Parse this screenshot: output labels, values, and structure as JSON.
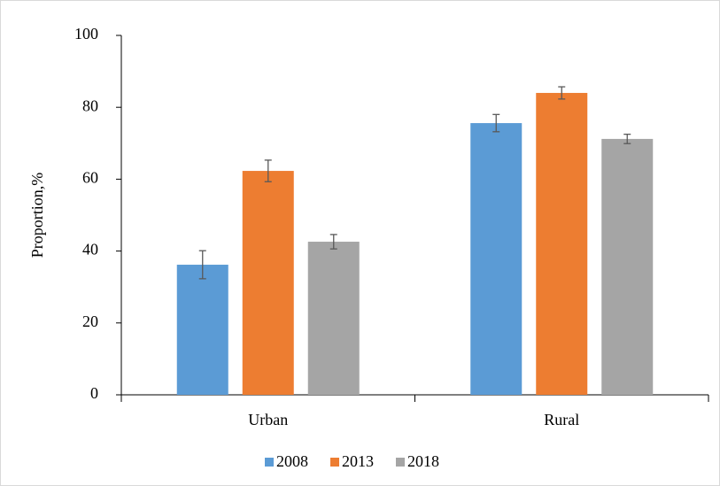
{
  "chart_data": {
    "type": "bar",
    "ylabel": "Proportion,%",
    "categories": [
      "Urban",
      "Rural"
    ],
    "series": [
      {
        "name": "2008",
        "color": "#5b9bd5",
        "values": [
          36.2,
          75.6
        ],
        "errors": [
          3.9,
          2.4
        ]
      },
      {
        "name": "2013",
        "color": "#ed7d31",
        "values": [
          62.3,
          84.0
        ],
        "errors": [
          3.0,
          1.7
        ]
      },
      {
        "name": "2018",
        "color": "#a5a5a5",
        "values": [
          42.6,
          71.2
        ],
        "errors": [
          2.0,
          1.3
        ]
      }
    ],
    "ylim": [
      0,
      100
    ],
    "yticks": [
      0,
      20,
      40,
      60,
      80,
      100
    ],
    "grid": false,
    "legend": "bottom"
  }
}
